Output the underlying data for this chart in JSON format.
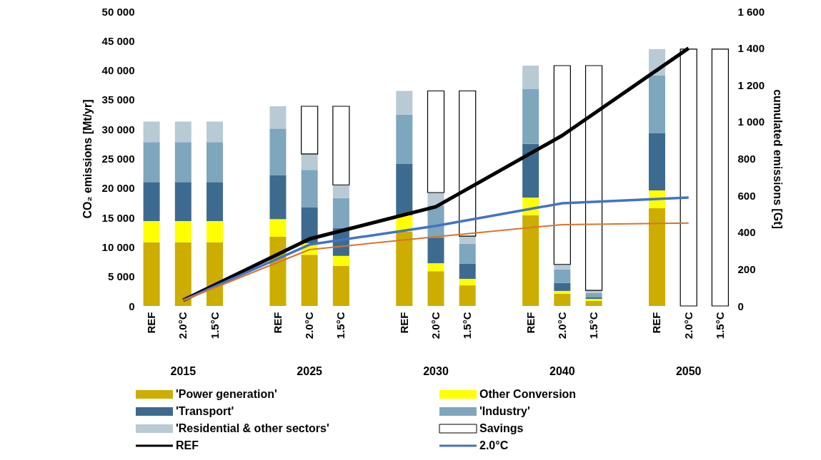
{
  "chart_data": {
    "type": "bar",
    "stacked": true,
    "ylabel": "CO₂ emissions [Mt/yr]",
    "y2label": "cumulated emissions [Gt]",
    "categories": [
      "REF",
      "2.0°C",
      "1.5°C",
      null,
      "REF",
      "2.0°C",
      "1.5°C",
      null,
      "REF",
      "2.0°C",
      "1.5°C",
      null,
      "REF",
      "2.0°C",
      "1.5°C",
      null,
      "REF",
      "2.0°C",
      "1.5°C"
    ],
    "annotations": [
      "2015",
      "2025",
      "2030",
      "2040",
      "2050"
    ],
    "ylim": [
      0,
      50000
    ],
    "yticks": [
      0,
      {
        "value": 5000,
        "label": "5 000"
      },
      {
        "value": 10000,
        "label": "10 000"
      },
      {
        "value": 15000,
        "label": "15 000"
      },
      {
        "value": 20000,
        "label": "20 000"
      },
      {
        "value": 25000,
        "label": "25 000"
      },
      {
        "value": 30000,
        "label": "30 000"
      },
      {
        "value": 35000,
        "label": "35 000"
      },
      {
        "value": 40000,
        "label": "40 000"
      },
      {
        "value": 45000,
        "label": "45 000"
      },
      {
        "value": 50000,
        "label": "50 000"
      }
    ],
    "y2lim": [
      0,
      1600
    ],
    "y2ticks": [
      0,
      200,
      400,
      600,
      800,
      {
        "value": 1000,
        "label": "1 000"
      },
      {
        "value": 1200,
        "label": "1 200"
      },
      {
        "value": 1400,
        "label": "1 400"
      },
      {
        "value": 1600,
        "label": "1 600"
      }
    ],
    "grid": false,
    "legend": "bottom",
    "series": [
      {
        "name": "'Power generation'",
        "color": "#ccad00",
        "values": [
          10800,
          10800,
          10800,
          null,
          11750,
          8700,
          6800,
          null,
          12600,
          5900,
          3500,
          null,
          15400,
          2050,
          850,
          null,
          16600,
          null,
          null
        ]
      },
      {
        "name": "Other Conversion",
        "color": "#ffff00",
        "values": [
          3600,
          3600,
          3600,
          null,
          3000,
          1950,
          1700,
          null,
          2800,
          1350,
          1100,
          null,
          3000,
          500,
          350,
          null,
          3000,
          null,
          null
        ]
      },
      {
        "name": "'Transport'",
        "color": "#3d6b8f",
        "values": [
          6650,
          6650,
          6650,
          null,
          7400,
          6050,
          4700,
          null,
          8700,
          4350,
          2550,
          null,
          9100,
          1350,
          250,
          null,
          9700,
          null,
          null
        ]
      },
      {
        "name": "'Industry'",
        "color": "#7ea6bd",
        "values": [
          6750,
          6750,
          6750,
          null,
          7950,
          6400,
          5100,
          null,
          8400,
          5450,
          3400,
          null,
          9300,
          2300,
          750,
          null,
          9800,
          null,
          null
        ]
      },
      {
        "name": "'Residential & other sectors'",
        "color": "#b8cad4",
        "values": [
          3500,
          3500,
          3500,
          null,
          3800,
          2700,
          2250,
          null,
          4000,
          2200,
          1300,
          null,
          4000,
          850,
          450,
          null,
          4500,
          null,
          null
        ]
      },
      {
        "name": "Savings",
        "color": "#ffffff",
        "values": [
          null,
          null,
          null,
          null,
          null,
          8100,
          13350,
          null,
          null,
          17250,
          24650,
          null,
          null,
          33750,
          38150,
          null,
          null,
          43600,
          43600
        ]
      },
      {
        "name": "REF",
        "type": "line",
        "axis": "y2",
        "color": "#000000",
        "values": [
          null,
          31,
          null,
          null,
          null,
          364,
          null,
          null,
          null,
          539,
          null,
          null,
          null,
          926,
          null,
          null,
          null,
          1400,
          null
        ]
      },
      {
        "name": "2.0°C",
        "type": "line",
        "axis": "y2",
        "color": "#4472c4",
        "values": [
          null,
          30,
          null,
          null,
          null,
          333,
          null,
          null,
          null,
          435,
          null,
          null,
          null,
          558,
          null,
          null,
          null,
          589,
          null
        ]
      },
      {
        "type": "line",
        "axis": "y2",
        "color": "#d9742b",
        "values": [
          null,
          30,
          null,
          null,
          null,
          306,
          null,
          null,
          null,
          376,
          null,
          null,
          null,
          442,
          null,
          null,
          null,
          450,
          null
        ]
      }
    ]
  }
}
